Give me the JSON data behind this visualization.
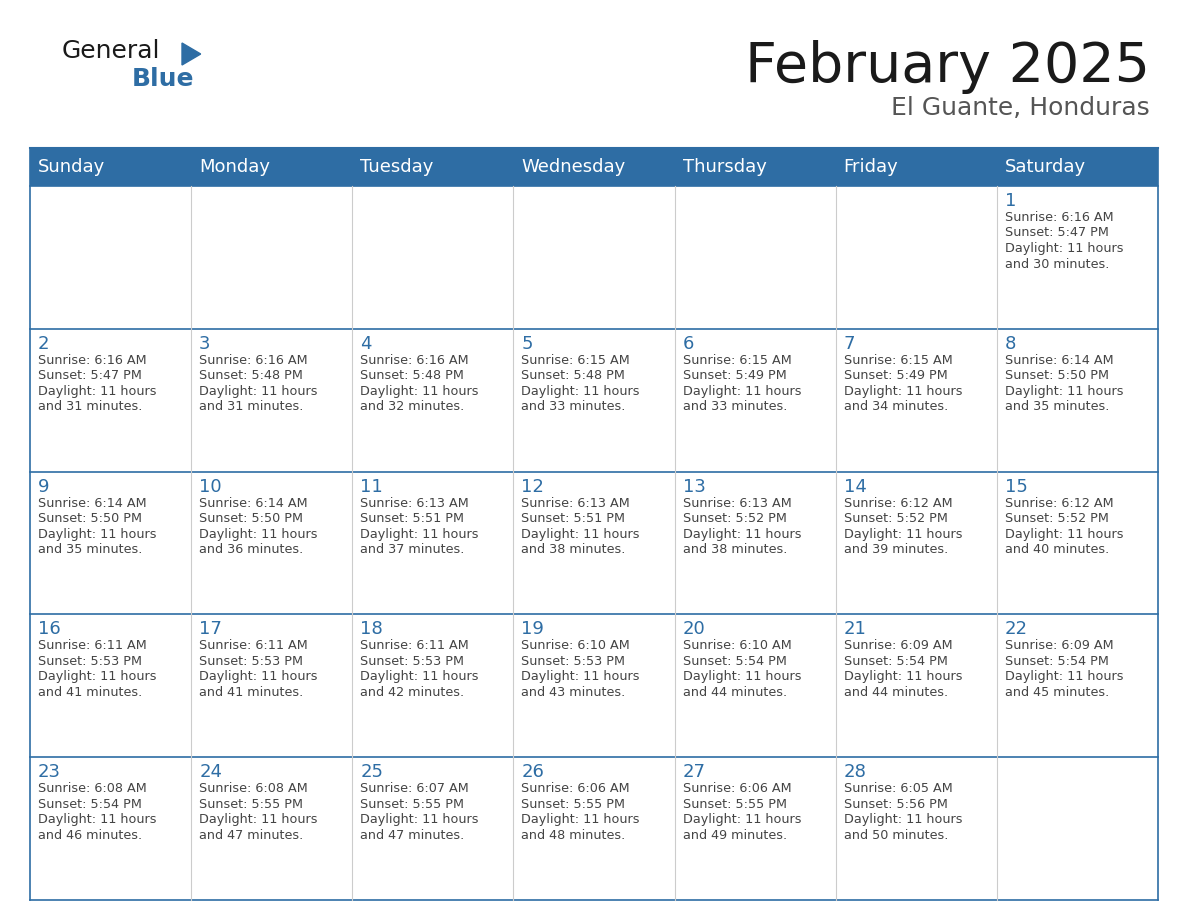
{
  "title": "February 2025",
  "subtitle": "El Guante, Honduras",
  "days_of_week": [
    "Sunday",
    "Monday",
    "Tuesday",
    "Wednesday",
    "Thursday",
    "Friday",
    "Saturday"
  ],
  "header_bg_color": "#2E6DA4",
  "header_text_color": "#FFFFFF",
  "cell_border_color": "#2E6DA4",
  "day_number_color": "#2E6DA4",
  "detail_text_color": "#444444",
  "title_color": "#1a1a1a",
  "subtitle_color": "#555555",
  "logo_general_color": "#1a1a1a",
  "logo_blue_color": "#2E6DA4",
  "calendar_data": [
    [
      null,
      null,
      null,
      null,
      null,
      null,
      {
        "day": 1,
        "sunrise": "6:16 AM",
        "sunset": "5:47 PM",
        "daylight_hours": 11,
        "daylight_minutes": 30
      }
    ],
    [
      {
        "day": 2,
        "sunrise": "6:16 AM",
        "sunset": "5:47 PM",
        "daylight_hours": 11,
        "daylight_minutes": 31
      },
      {
        "day": 3,
        "sunrise": "6:16 AM",
        "sunset": "5:48 PM",
        "daylight_hours": 11,
        "daylight_minutes": 31
      },
      {
        "day": 4,
        "sunrise": "6:16 AM",
        "sunset": "5:48 PM",
        "daylight_hours": 11,
        "daylight_minutes": 32
      },
      {
        "day": 5,
        "sunrise": "6:15 AM",
        "sunset": "5:48 PM",
        "daylight_hours": 11,
        "daylight_minutes": 33
      },
      {
        "day": 6,
        "sunrise": "6:15 AM",
        "sunset": "5:49 PM",
        "daylight_hours": 11,
        "daylight_minutes": 33
      },
      {
        "day": 7,
        "sunrise": "6:15 AM",
        "sunset": "5:49 PM",
        "daylight_hours": 11,
        "daylight_minutes": 34
      },
      {
        "day": 8,
        "sunrise": "6:14 AM",
        "sunset": "5:50 PM",
        "daylight_hours": 11,
        "daylight_minutes": 35
      }
    ],
    [
      {
        "day": 9,
        "sunrise": "6:14 AM",
        "sunset": "5:50 PM",
        "daylight_hours": 11,
        "daylight_minutes": 35
      },
      {
        "day": 10,
        "sunrise": "6:14 AM",
        "sunset": "5:50 PM",
        "daylight_hours": 11,
        "daylight_minutes": 36
      },
      {
        "day": 11,
        "sunrise": "6:13 AM",
        "sunset": "5:51 PM",
        "daylight_hours": 11,
        "daylight_minutes": 37
      },
      {
        "day": 12,
        "sunrise": "6:13 AM",
        "sunset": "5:51 PM",
        "daylight_hours": 11,
        "daylight_minutes": 38
      },
      {
        "day": 13,
        "sunrise": "6:13 AM",
        "sunset": "5:52 PM",
        "daylight_hours": 11,
        "daylight_minutes": 38
      },
      {
        "day": 14,
        "sunrise": "6:12 AM",
        "sunset": "5:52 PM",
        "daylight_hours": 11,
        "daylight_minutes": 39
      },
      {
        "day": 15,
        "sunrise": "6:12 AM",
        "sunset": "5:52 PM",
        "daylight_hours": 11,
        "daylight_minutes": 40
      }
    ],
    [
      {
        "day": 16,
        "sunrise": "6:11 AM",
        "sunset": "5:53 PM",
        "daylight_hours": 11,
        "daylight_minutes": 41
      },
      {
        "day": 17,
        "sunrise": "6:11 AM",
        "sunset": "5:53 PM",
        "daylight_hours": 11,
        "daylight_minutes": 41
      },
      {
        "day": 18,
        "sunrise": "6:11 AM",
        "sunset": "5:53 PM",
        "daylight_hours": 11,
        "daylight_minutes": 42
      },
      {
        "day": 19,
        "sunrise": "6:10 AM",
        "sunset": "5:53 PM",
        "daylight_hours": 11,
        "daylight_minutes": 43
      },
      {
        "day": 20,
        "sunrise": "6:10 AM",
        "sunset": "5:54 PM",
        "daylight_hours": 11,
        "daylight_minutes": 44
      },
      {
        "day": 21,
        "sunrise": "6:09 AM",
        "sunset": "5:54 PM",
        "daylight_hours": 11,
        "daylight_minutes": 44
      },
      {
        "day": 22,
        "sunrise": "6:09 AM",
        "sunset": "5:54 PM",
        "daylight_hours": 11,
        "daylight_minutes": 45
      }
    ],
    [
      {
        "day": 23,
        "sunrise": "6:08 AM",
        "sunset": "5:54 PM",
        "daylight_hours": 11,
        "daylight_minutes": 46
      },
      {
        "day": 24,
        "sunrise": "6:08 AM",
        "sunset": "5:55 PM",
        "daylight_hours": 11,
        "daylight_minutes": 47
      },
      {
        "day": 25,
        "sunrise": "6:07 AM",
        "sunset": "5:55 PM",
        "daylight_hours": 11,
        "daylight_minutes": 47
      },
      {
        "day": 26,
        "sunrise": "6:06 AM",
        "sunset": "5:55 PM",
        "daylight_hours": 11,
        "daylight_minutes": 48
      },
      {
        "day": 27,
        "sunrise": "6:06 AM",
        "sunset": "5:55 PM",
        "daylight_hours": 11,
        "daylight_minutes": 49
      },
      {
        "day": 28,
        "sunrise": "6:05 AM",
        "sunset": "5:56 PM",
        "daylight_hours": 11,
        "daylight_minutes": 50
      },
      null
    ]
  ]
}
